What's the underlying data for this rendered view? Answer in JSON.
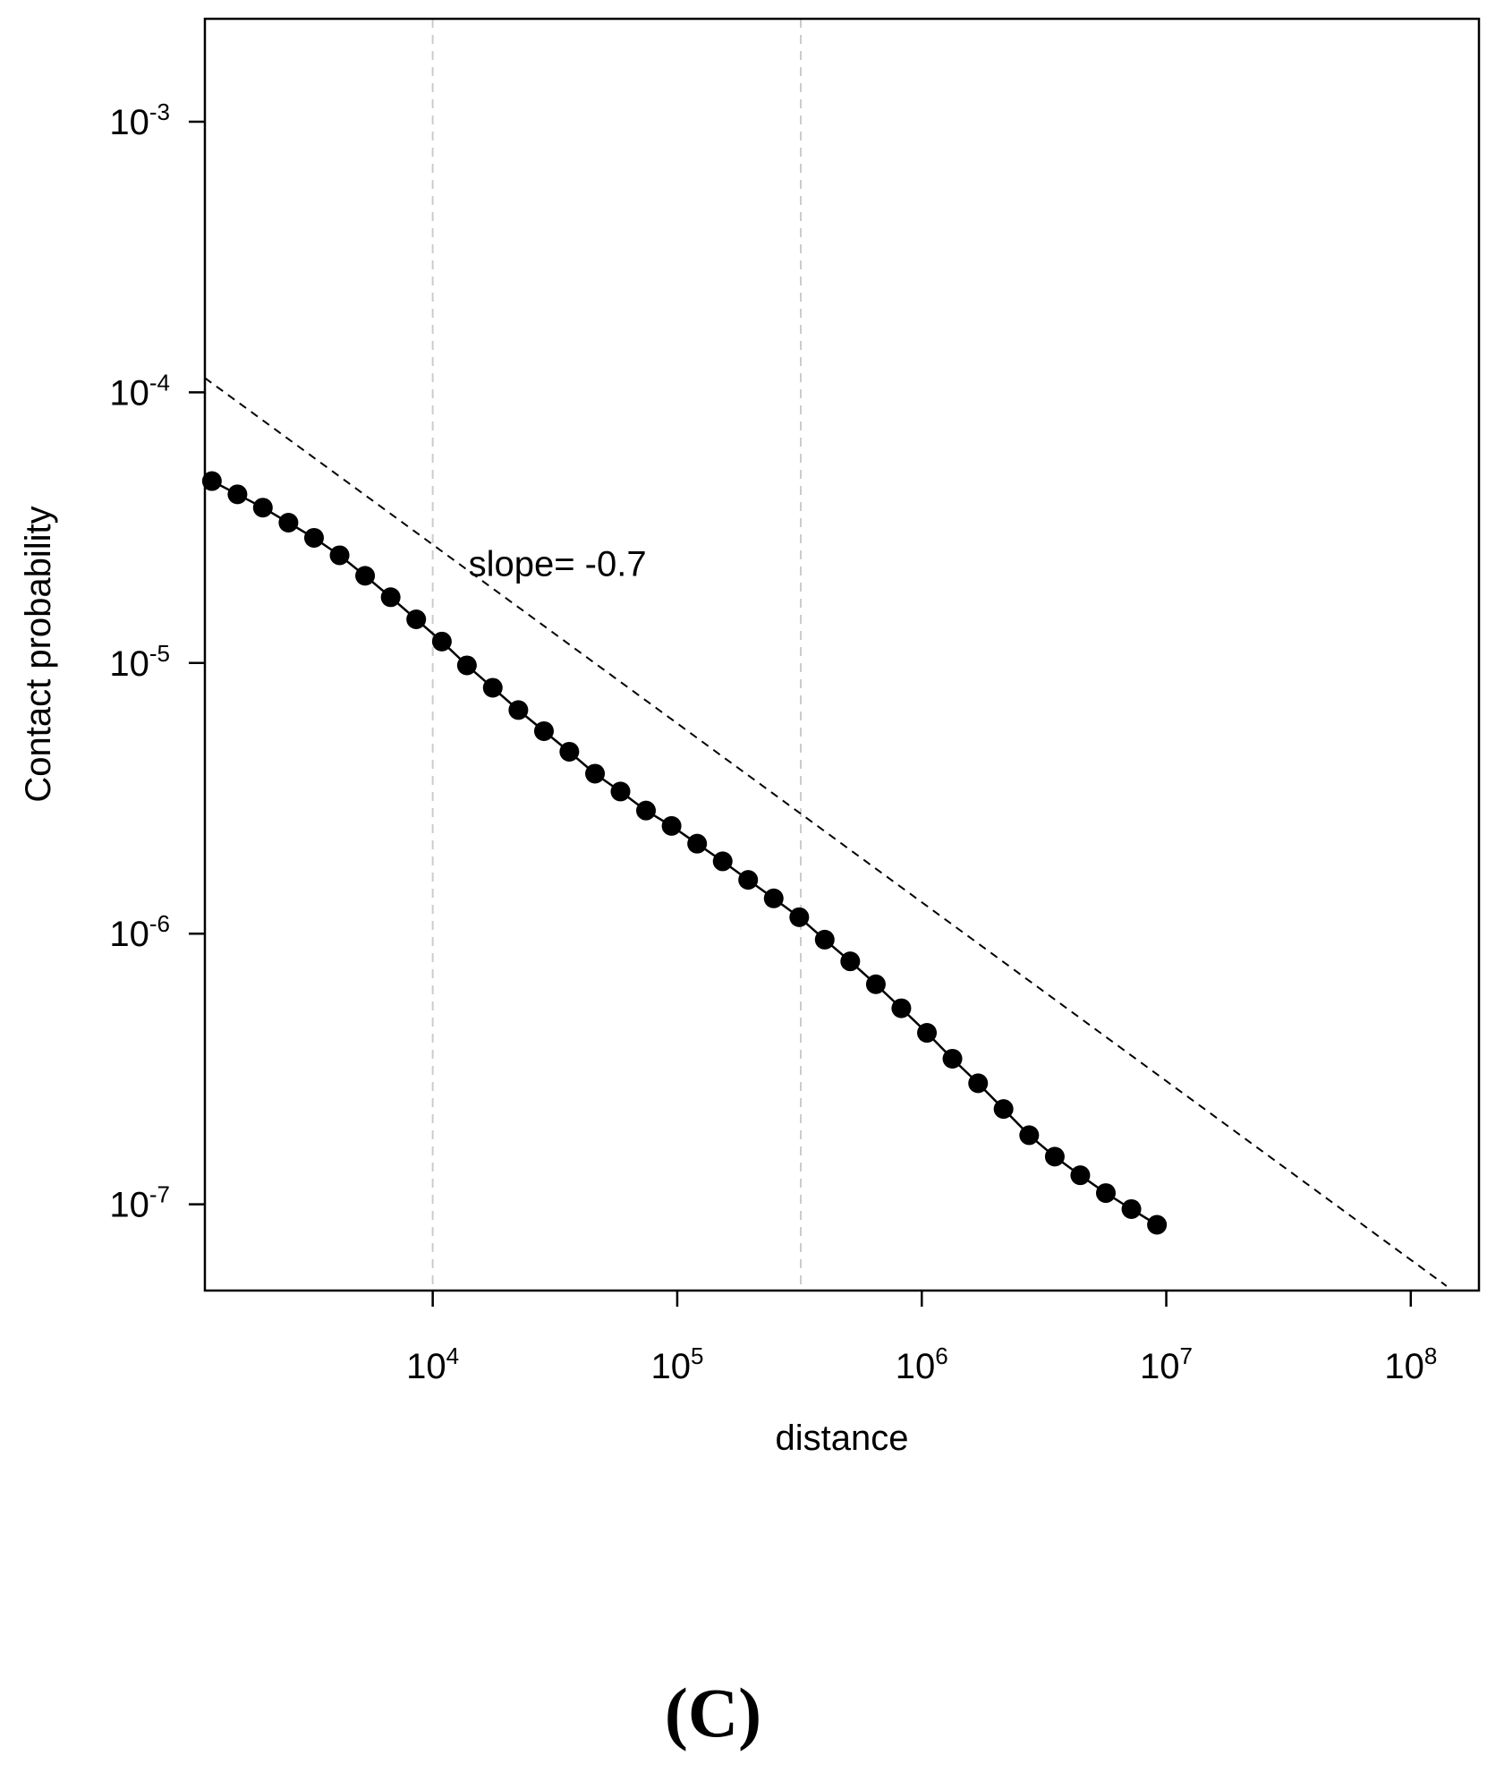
{
  "chart_data": {
    "type": "scatter",
    "title": "",
    "xlabel": "distance",
    "ylabel": "Contact probability",
    "x_scale": "log",
    "y_scale": "log",
    "xlim": [
      1170,
      190000000
    ],
    "ylim": [
      4.8e-08,
      0.0024
    ],
    "x_ticks": [
      {
        "value": 10000,
        "base": "10",
        "exp": "4"
      },
      {
        "value": 100000,
        "base": "10",
        "exp": "5"
      },
      {
        "value": 1000000,
        "base": "10",
        "exp": "6"
      },
      {
        "value": 10000000,
        "base": "10",
        "exp": "7"
      },
      {
        "value": 100000000,
        "base": "10",
        "exp": "8"
      }
    ],
    "y_ticks": [
      {
        "value": 0.001,
        "base": "10",
        "exp": "-3"
      },
      {
        "value": 0.0001,
        "base": "10",
        "exp": "-4"
      },
      {
        "value": 1e-05,
        "base": "10",
        "exp": "-5"
      },
      {
        "value": 1e-06,
        "base": "10",
        "exp": "-6"
      },
      {
        "value": 1e-07,
        "base": "10",
        "exp": "-7"
      }
    ],
    "vlines": [
      10000,
      320000
    ],
    "grid": false,
    "legend": "none",
    "series": [
      {
        "x": [
          1250,
          1590,
          2020,
          2570,
          3270,
          4160,
          5290,
          6730,
          8560,
          10900,
          13800,
          17600,
          22400,
          28500,
          36200,
          46100,
          58600,
          74500,
          94800,
          120600,
          153400,
          195000,
          248000,
          315500,
          401000,
          510000,
          649000,
          825000,
          1050000,
          1335000,
          1700000,
          2160000,
          2750000,
          3500000,
          4450000,
          5660000,
          7200000,
          9160000
        ],
        "y": [
          4.7e-05,
          4.2e-05,
          3.75e-05,
          3.3e-05,
          2.9e-05,
          2.5e-05,
          2.1e-05,
          1.75e-05,
          1.45e-05,
          1.2e-05,
          9.8e-06,
          8.1e-06,
          6.7e-06,
          5.6e-06,
          4.7e-06,
          3.9e-06,
          3.35e-06,
          2.85e-06,
          2.5e-06,
          2.15e-06,
          1.85e-06,
          1.58e-06,
          1.35e-06,
          1.15e-06,
          9.5e-07,
          7.9e-07,
          6.5e-07,
          5.3e-07,
          4.3e-07,
          3.45e-07,
          2.8e-07,
          2.25e-07,
          1.8e-07,
          1.5e-07,
          1.28e-07,
          1.1e-07,
          9.6e-08,
          8.4e-08
        ],
        "line": "solid",
        "marker": "filled-circle",
        "color": "#000000"
      }
    ],
    "reference_line": {
      "label": "slope= -0.7",
      "slope": -0.7,
      "x": [
        1170,
        140000000
      ],
      "y": [
        0.000113,
        4.99e-08
      ],
      "style": "dashed",
      "color": "#000000"
    },
    "annotations": [
      {
        "text": "slope= -0.7",
        "x": 14000,
        "y": 2.1e-05
      }
    ],
    "vline_color": "#cccccc"
  },
  "panel_label": "(C)"
}
